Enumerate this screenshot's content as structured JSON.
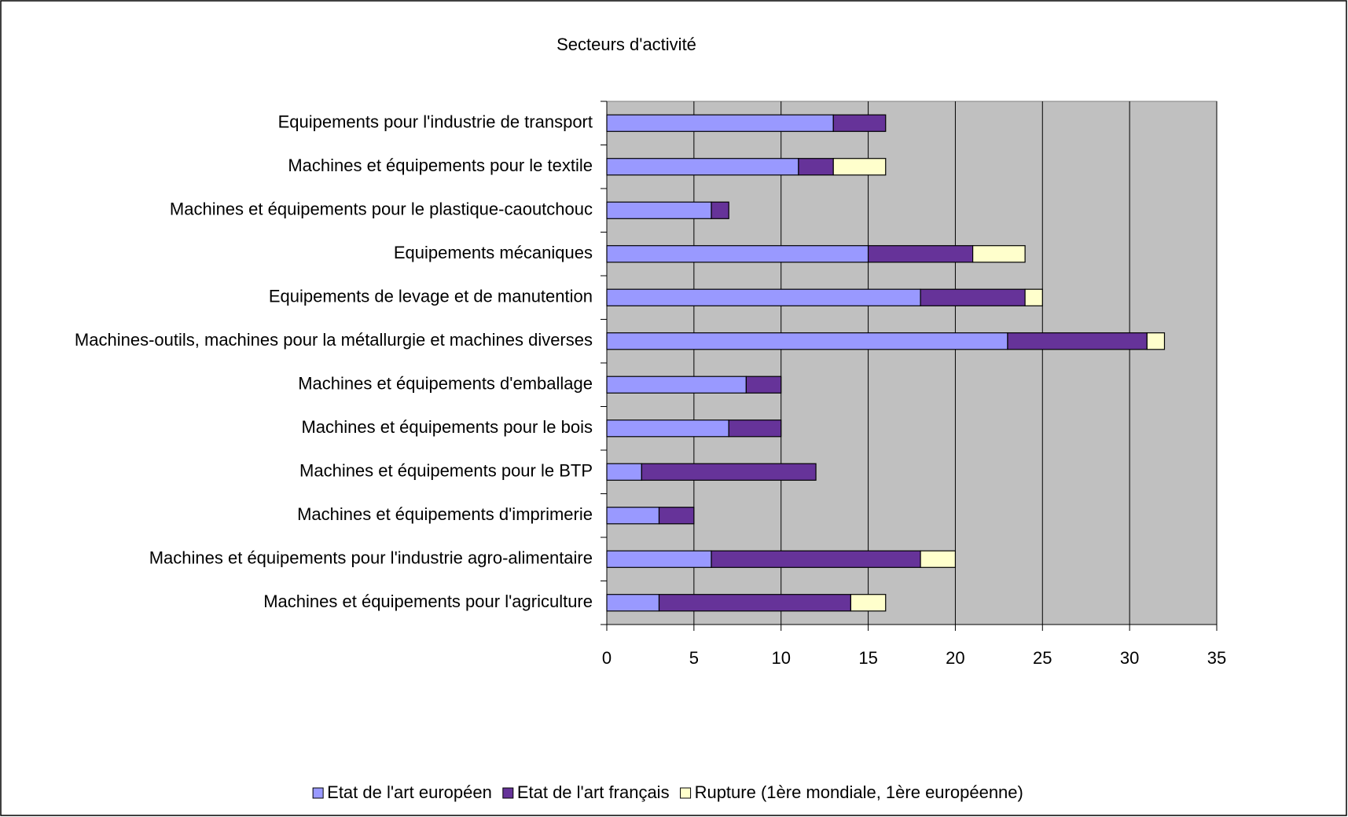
{
  "chart_data": {
    "type": "bar",
    "orientation": "horizontal",
    "stacked": true,
    "title": "Secteurs d'activité",
    "categories": [
      "Equipements pour l'industrie de transport",
      "Machines et équipements pour le textile",
      "Machines et équipements pour le plastique-caoutchouc",
      "Equipements mécaniques",
      "Equipements de levage et de manutention",
      "Machines-outils, machines pour la métallurgie et machines diverses",
      "Machines et équipements d'emballage",
      "Machines et équipements pour le bois",
      "Machines et équipements pour le BTP",
      "Machines et équipements d'imprimerie",
      "Machines et équipements pour l'industrie agro-alimentaire",
      "Machines et équipements pour l'agriculture"
    ],
    "series": [
      {
        "name": "Etat de l'art européen",
        "color": "#9999ff",
        "values": [
          13,
          11,
          6,
          15,
          18,
          23,
          8,
          7,
          2,
          3,
          6,
          3
        ]
      },
      {
        "name": "Etat de l'art français",
        "color": "#663399",
        "values": [
          3,
          2,
          1,
          6,
          6,
          8,
          2,
          3,
          10,
          2,
          12,
          11
        ]
      },
      {
        "name": "Rupture (1ère mondiale, 1ère européenne)",
        "color": "#ffffcc",
        "values": [
          0,
          3,
          0,
          3,
          1,
          1,
          0,
          0,
          0,
          0,
          2,
          2
        ]
      }
    ],
    "xlim": [
      0,
      35
    ],
    "xticks": [
      0,
      5,
      10,
      15,
      20,
      25,
      30,
      35
    ],
    "grid": true,
    "plot_background": "#c0c0c0",
    "legend": "bottom"
  }
}
